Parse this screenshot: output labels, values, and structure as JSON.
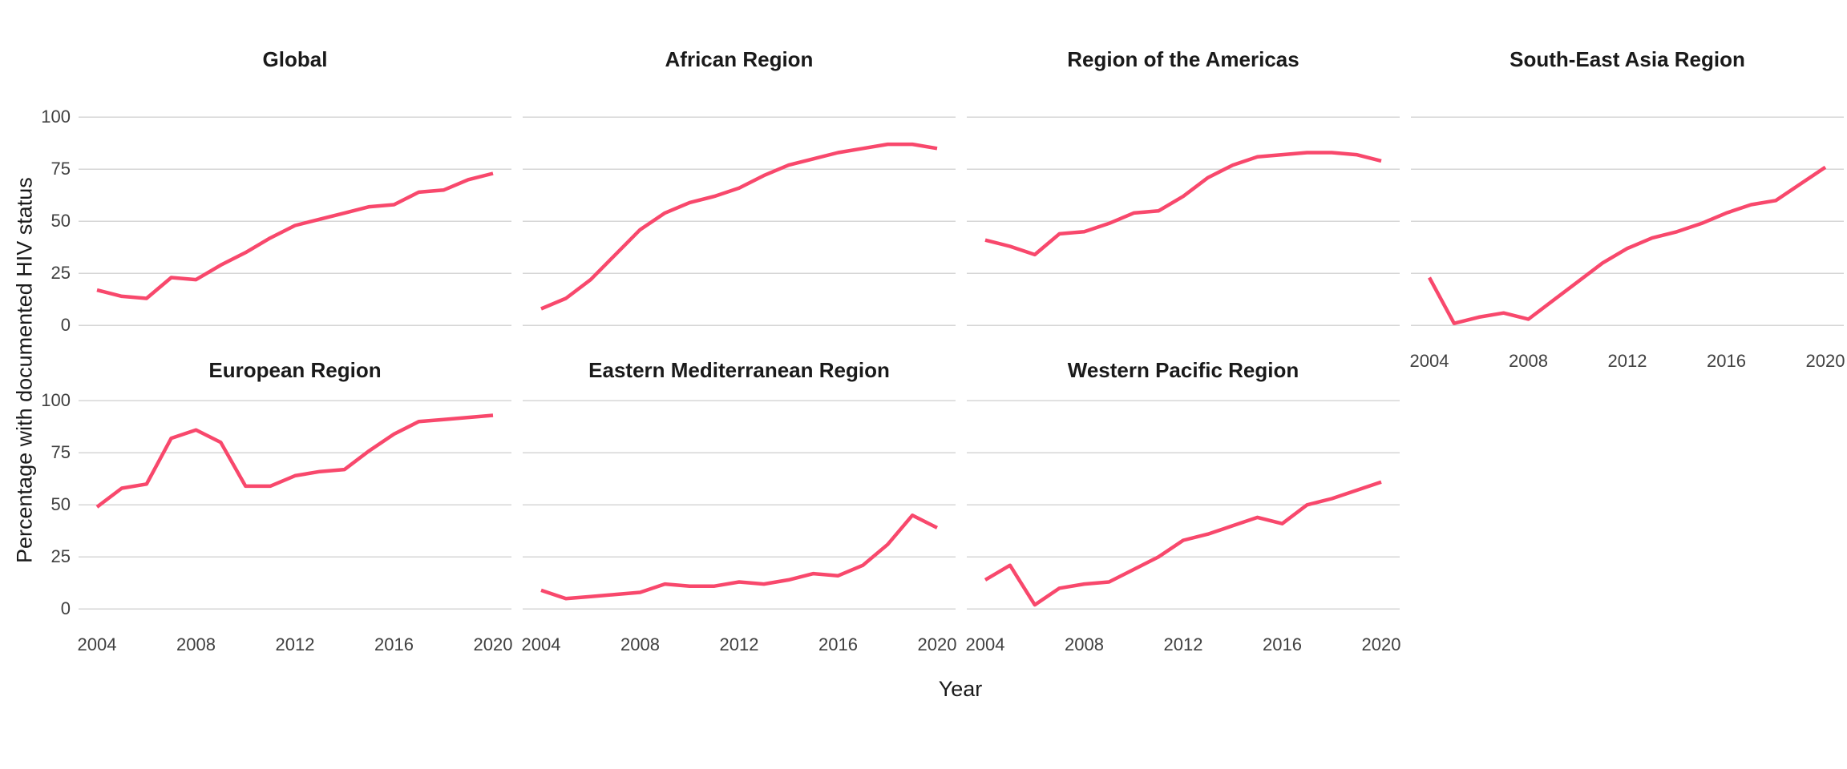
{
  "y_axis": {
    "title": "Percentage with documented HIV status",
    "ticks": [
      100,
      75,
      50,
      25,
      0
    ],
    "limits": [
      0,
      100
    ]
  },
  "x_axis": {
    "title": "Year",
    "ticks": [
      2004,
      2008,
      2012,
      2016,
      2020
    ],
    "range": [
      2004,
      2020
    ]
  },
  "style": {
    "line_color": "#F8486C",
    "grid_color": "#D6D6D6",
    "tick_text_color": "#404040",
    "title_text_color": "#1A1A1A",
    "background": "#FFFFFF"
  },
  "chart_data": {
    "type": "line",
    "title": "",
    "xlabel": "Year",
    "ylabel": "Percentage with documented HIV status",
    "ylim": [
      0,
      100
    ],
    "grid": "horizontal-only",
    "legend_position": "none",
    "x": [
      2004,
      2005,
      2006,
      2007,
      2008,
      2009,
      2010,
      2011,
      2012,
      2013,
      2014,
      2015,
      2016,
      2017,
      2018,
      2019,
      2020
    ],
    "facets": [
      {
        "title": "Global",
        "values": [
          17,
          14,
          13,
          23,
          22,
          29,
          35,
          42,
          48,
          51,
          54,
          57,
          58,
          64,
          65,
          70,
          73
        ]
      },
      {
        "title": "African Region",
        "values": [
          8,
          13,
          22,
          34,
          46,
          54,
          59,
          62,
          66,
          72,
          77,
          80,
          83,
          85,
          87,
          87,
          85
        ]
      },
      {
        "title": "Region of the Americas",
        "values": [
          41,
          38,
          34,
          44,
          45,
          49,
          54,
          55,
          62,
          71,
          77,
          81,
          82,
          83,
          83,
          82,
          79
        ]
      },
      {
        "title": "South-East Asia Region",
        "values": [
          23,
          1,
          4,
          6,
          3,
          12,
          21,
          30,
          37,
          42,
          45,
          49,
          54,
          58,
          60,
          68,
          76
        ]
      },
      {
        "title": "European Region",
        "values": [
          49,
          58,
          60,
          82,
          86,
          80,
          59,
          59,
          64,
          66,
          67,
          76,
          84,
          90,
          91,
          92,
          93
        ]
      },
      {
        "title": "Eastern Mediterranean Region",
        "values": [
          9,
          5,
          6,
          7,
          8,
          12,
          11,
          11,
          13,
          12,
          14,
          17,
          16,
          21,
          31,
          45,
          39
        ]
      },
      {
        "title": "Western Pacific Region",
        "values": [
          14,
          21,
          2,
          10,
          12,
          13,
          19,
          25,
          33,
          36,
          40,
          44,
          41,
          50,
          53,
          57,
          61
        ]
      }
    ]
  }
}
